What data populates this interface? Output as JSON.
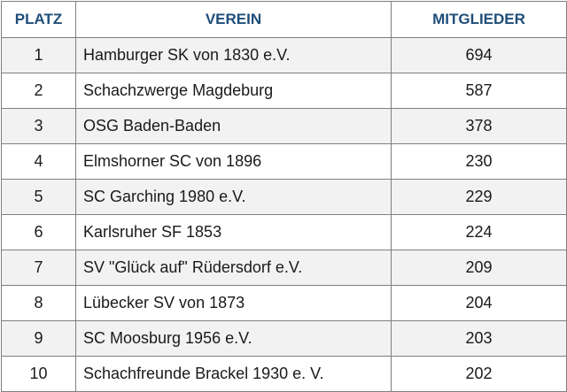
{
  "table": {
    "headers": [
      "PLATZ",
      "VEREIN",
      "MITGLIEDER"
    ],
    "rows": [
      [
        1,
        "Hamburger SK von 1830 e.V.",
        694
      ],
      [
        2,
        "Schachzwerge Magdeburg",
        587
      ],
      [
        3,
        "OSG Baden-Baden",
        378
      ],
      [
        4,
        "Elmshorner SC von 1896",
        230
      ],
      [
        5,
        "SC Garching 1980 e.V.",
        229
      ],
      [
        6,
        "Karlsruher SF 1853",
        224
      ],
      [
        7,
        "SV \"Glück auf\" Rüdersdorf e.V.",
        209
      ],
      [
        8,
        "Lübecker SV von 1873",
        204
      ],
      [
        9,
        "SC Moosburg 1956 e.V.",
        203
      ],
      [
        10,
        "Schachfreunde Brackel 1930 e. V.",
        202
      ]
    ]
  }
}
